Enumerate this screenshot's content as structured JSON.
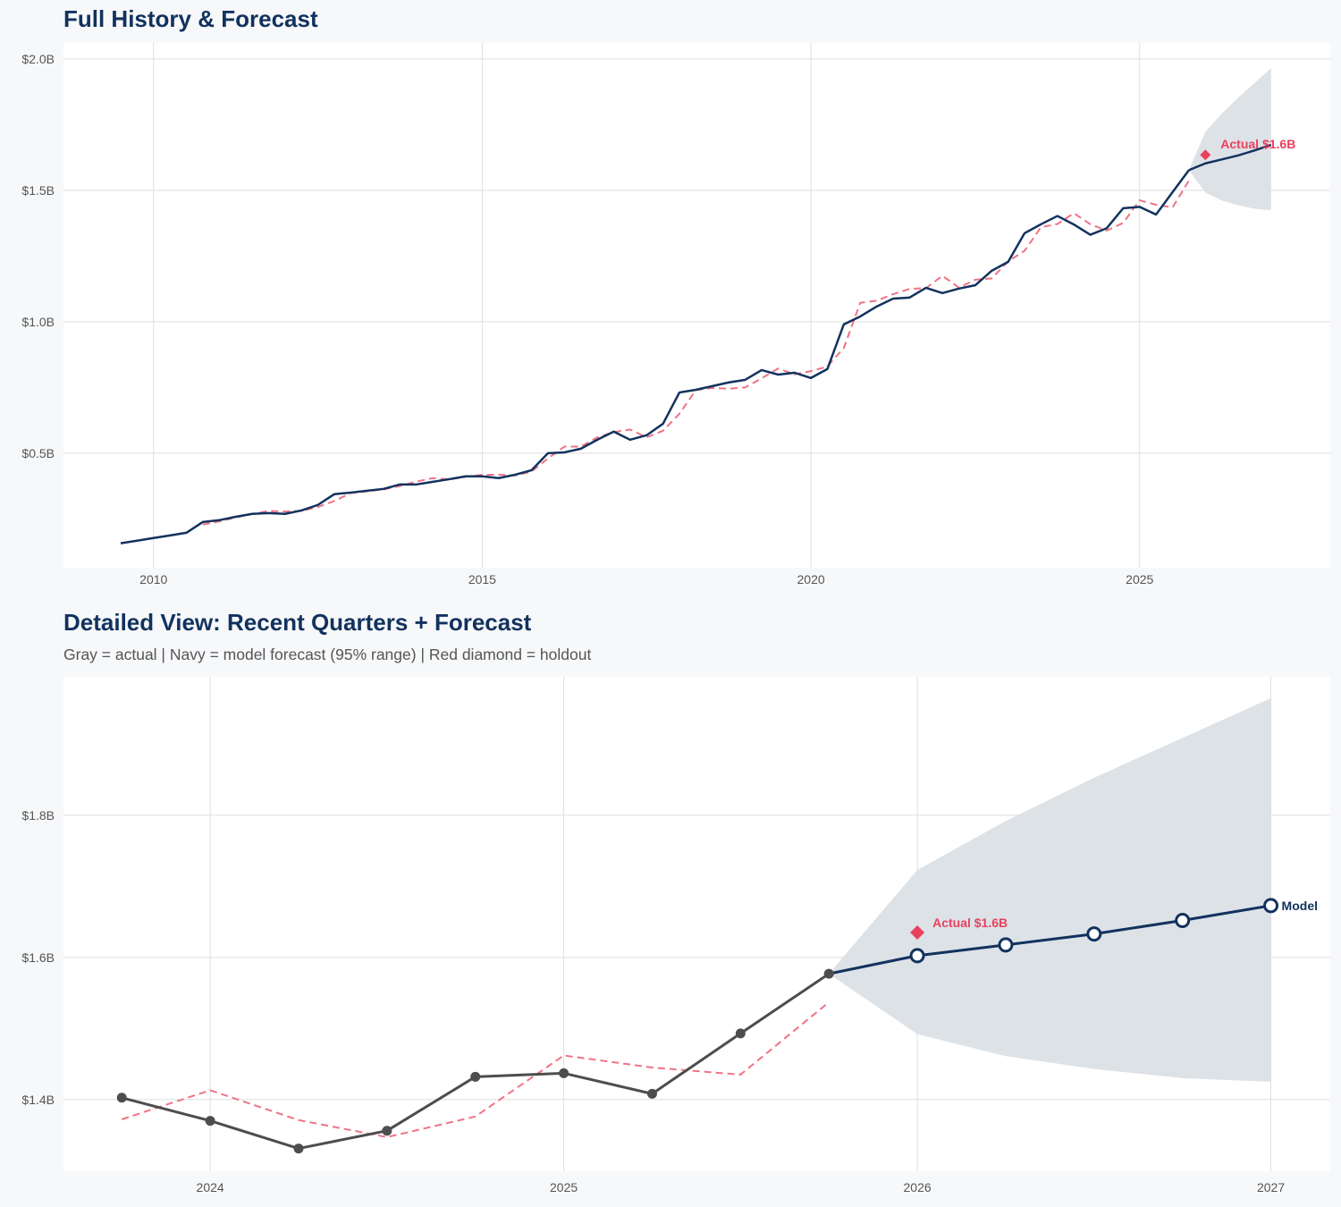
{
  "chart_data": [
    {
      "type": "line",
      "title": "Full History & Forecast",
      "xlim": [
        2008.63,
        2027.9
      ],
      "ylim": [
        0.064,
        2.061
      ],
      "x_ticks": [
        2010,
        2015,
        2020,
        2025
      ],
      "x_tick_labels": [
        "2010",
        "2015",
        "2020",
        "2025"
      ],
      "y_ticks": [
        0.5,
        1.0,
        1.5,
        2.0
      ],
      "y_tick_labels": [
        "$0.5B",
        "$1.0B",
        "$1.5B",
        "$2.0B"
      ],
      "grid": true,
      "actual": {
        "x_start": 2009.5,
        "step": 0.25,
        "values": [
          0.157,
          0.167,
          0.177,
          0.187,
          0.197,
          0.238,
          0.245,
          0.258,
          0.269,
          0.272,
          0.269,
          0.282,
          0.303,
          0.344,
          0.35,
          0.357,
          0.364,
          0.381,
          0.381,
          0.391,
          0.401,
          0.412,
          0.412,
          0.405,
          0.418,
          0.435,
          0.5,
          0.503,
          0.517,
          0.551,
          0.582,
          0.551,
          0.568,
          0.612,
          0.731,
          0.741,
          0.755,
          0.769,
          0.779,
          0.816,
          0.799,
          0.806,
          0.786,
          0.82,
          0.99,
          1.02,
          1.058,
          1.088,
          1.092,
          1.129,
          1.109,
          1.126,
          1.139,
          1.194,
          1.228,
          1.337,
          1.371,
          1.4025,
          1.37,
          1.331,
          1.356,
          1.432,
          1.437,
          1.408,
          1.493,
          1.577
        ]
      },
      "fitted": {
        "x_start": 2010.75,
        "step": 0.25,
        "values": [
          0.228,
          0.24,
          0.255,
          0.268,
          0.28,
          0.278,
          0.28,
          0.295,
          0.318,
          0.348,
          0.355,
          0.362,
          0.375,
          0.392,
          0.405,
          0.4,
          0.41,
          0.418,
          0.418,
          0.415,
          0.43,
          0.48,
          0.525,
          0.525,
          0.56,
          0.58,
          0.59,
          0.56,
          0.585,
          0.65,
          0.74,
          0.748,
          0.745,
          0.75,
          0.785,
          0.822,
          0.8,
          0.812,
          0.83,
          0.9,
          1.072,
          1.08,
          1.105,
          1.125,
          1.128,
          1.175,
          1.13,
          1.16,
          1.165,
          1.23,
          1.27,
          1.36,
          1.372,
          1.413,
          1.371,
          1.347,
          1.376,
          1.462,
          1.445,
          1.435,
          1.537
        ]
      },
      "forecast": {
        "x": [
          2025.75,
          2026.0,
          2026.25,
          2026.5,
          2026.75,
          2027.0
        ],
        "values": [
          1.577,
          1.6025,
          1.6176,
          1.633,
          1.652,
          1.673
        ],
        "upper": [
          1.577,
          1.723,
          1.792,
          1.853,
          1.909,
          1.965
        ],
        "lower": [
          1.577,
          1.492,
          1.461,
          1.443,
          1.43,
          1.425
        ]
      },
      "holdout": {
        "x": 2026.0,
        "value": 1.635,
        "label": "Actual $1.6B"
      }
    },
    {
      "type": "line",
      "title": "Detailed View: Recent Quarters + Forecast",
      "subtitle": "Gray = actual  |  Navy = model forecast (95% range)  |  Red diamond = holdout",
      "xlim": [
        2023.585,
        2027.168
      ],
      "ylim": [
        1.299,
        1.995
      ],
      "x_ticks": [
        2024,
        2025,
        2026,
        2027
      ],
      "x_tick_labels": [
        "2024",
        "2025",
        "2026",
        "2027"
      ],
      "y_ticks": [
        1.4,
        1.6,
        1.8
      ],
      "y_tick_labels": [
        "$1.4B",
        "$1.6B",
        "$1.8B"
      ],
      "grid": true,
      "actual": {
        "x": [
          2023.75,
          2024.0,
          2024.25,
          2024.5,
          2024.75,
          2025.0,
          2025.25,
          2025.5,
          2025.75
        ],
        "values": [
          1.4025,
          1.37,
          1.331,
          1.356,
          1.432,
          1.437,
          1.408,
          1.493,
          1.577
        ]
      },
      "fitted": {
        "x": [
          2023.75,
          2024.0,
          2024.25,
          2024.5,
          2024.75,
          2025.0,
          2025.25,
          2025.5,
          2025.75
        ],
        "values": [
          1.372,
          1.413,
          1.371,
          1.347,
          1.376,
          1.462,
          1.445,
          1.435,
          1.537
        ]
      },
      "forecast": {
        "x": [
          2025.75,
          2026.0,
          2026.25,
          2026.5,
          2026.75,
          2027.0
        ],
        "values": [
          1.577,
          1.6025,
          1.6176,
          1.633,
          1.652,
          1.673
        ],
        "upper": [
          1.577,
          1.723,
          1.792,
          1.853,
          1.909,
          1.965
        ],
        "lower": [
          1.577,
          1.492,
          1.461,
          1.443,
          1.43,
          1.425
        ],
        "label": "Model"
      },
      "holdout": {
        "x": 2026.0,
        "value": 1.635,
        "label": "Actual $1.6B"
      }
    }
  ],
  "colors": {
    "navy": "#12325e",
    "red": "#e8415e",
    "fitted": "#ef7385",
    "gray": "#4d4d4d",
    "band": "#dbe0e6",
    "grid": "#dedede"
  }
}
